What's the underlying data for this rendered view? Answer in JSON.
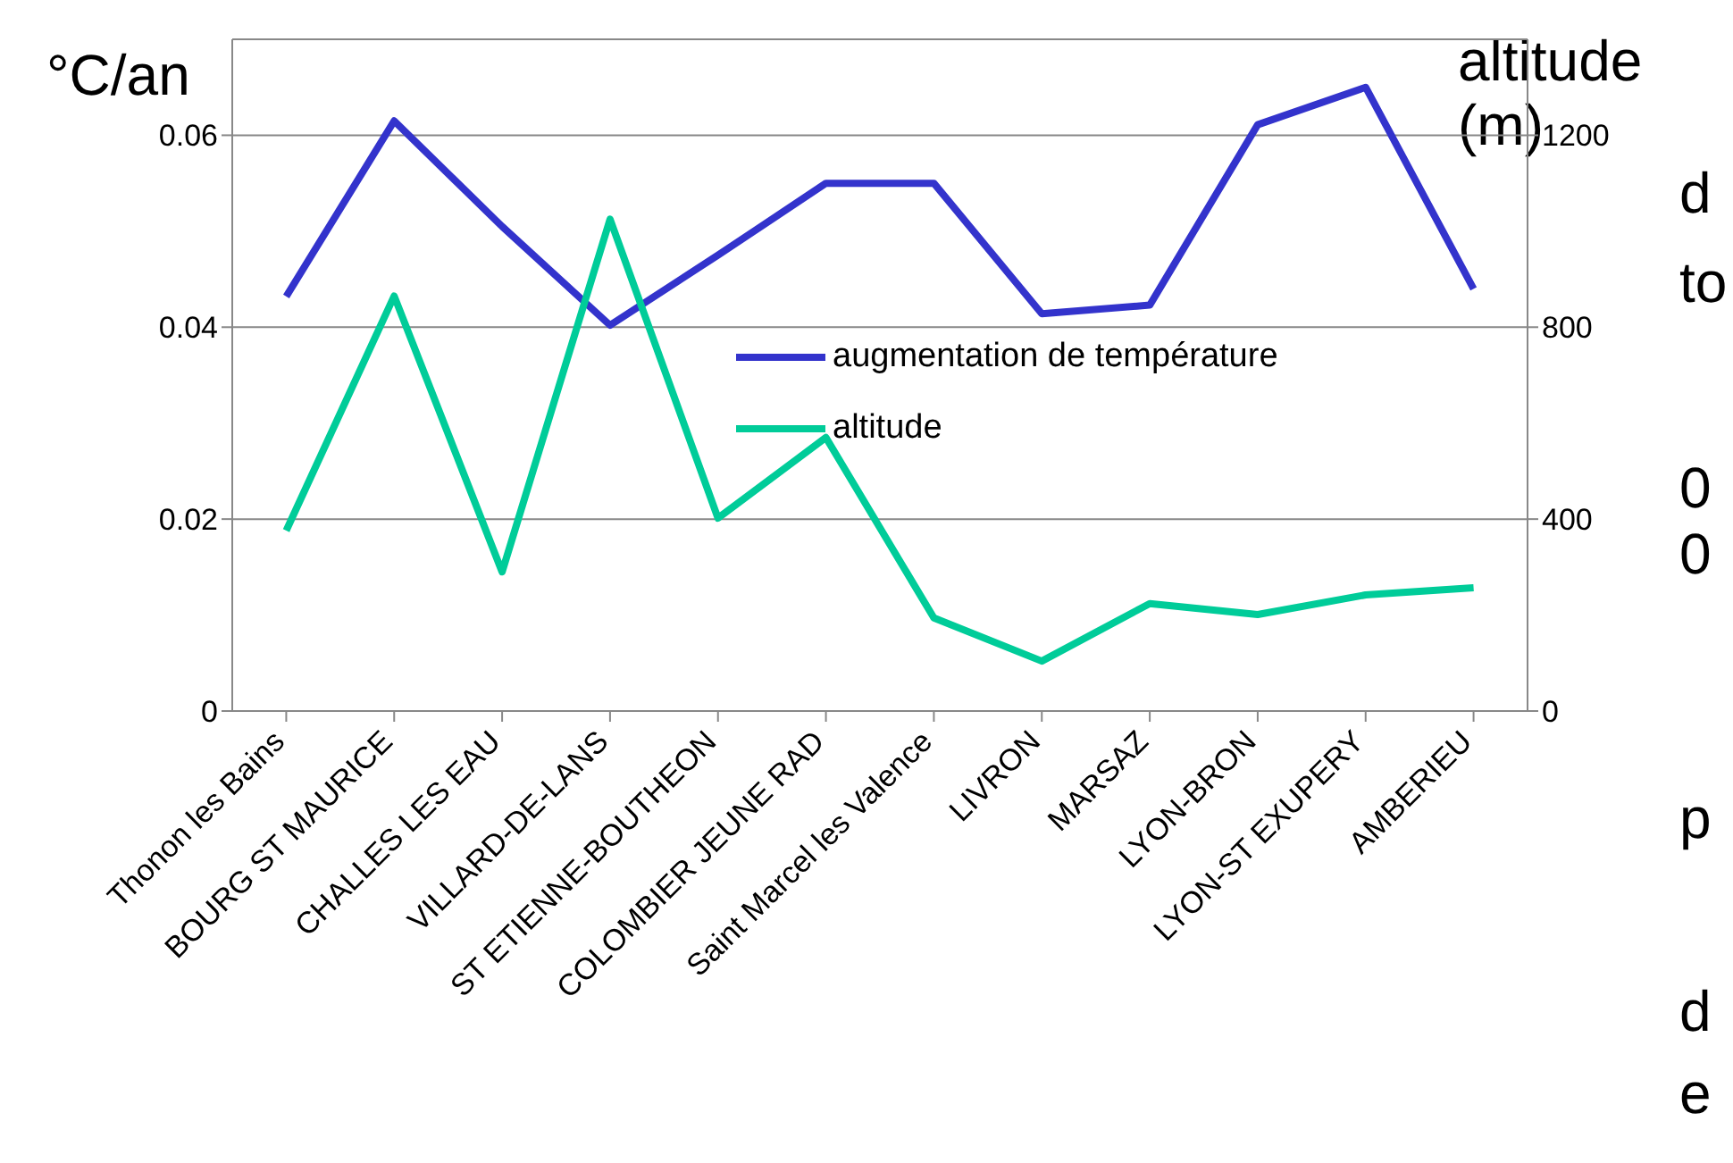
{
  "chart_data": {
    "type": "line",
    "ylabel": "°C/an",
    "y2label": "altitude (m)",
    "categories": [
      "Thonon les Bains",
      "BOURG ST MAURICE",
      "CHALLES LES EAU",
      "VILLARD-DE-LANS",
      "ST ETIENNE-BOUTHEON",
      "COLOMBIER JEUNE RAD",
      "Saint Marcel les Valence",
      "LIVRON",
      "MARSAZ",
      "LYON-BRON",
      "LYON-ST EXUPERY",
      "AMBERIEU"
    ],
    "series": [
      {
        "name": "augmentation de température",
        "color": "#3333cc",
        "values": [
          0.0432,
          0.0615,
          0.0505,
          0.0402,
          0.0475,
          0.055,
          0.055,
          0.0414,
          0.0423,
          0.0611,
          0.065,
          0.044
        ]
      },
      {
        "name": "altitude",
        "color": "#00cc99",
        "axis": "y2",
        "values": [
          376,
          865,
          290,
          1025,
          402,
          570,
          194,
          104,
          224,
          201,
          242,
          257
        ]
      }
    ],
    "ylim": [
      0,
      0.07
    ],
    "yticks": [
      0,
      0.02,
      0.04,
      0.06
    ],
    "y2lim": [
      0,
      1400
    ],
    "y2ticks": [
      0,
      400,
      800,
      1200
    ],
    "grid": "y",
    "legend": "right",
    "marker": "none",
    "line_style": "solid",
    "annotations": [
      "d",
      "to",
      "0",
      "0",
      "p",
      "d",
      "e"
    ]
  }
}
